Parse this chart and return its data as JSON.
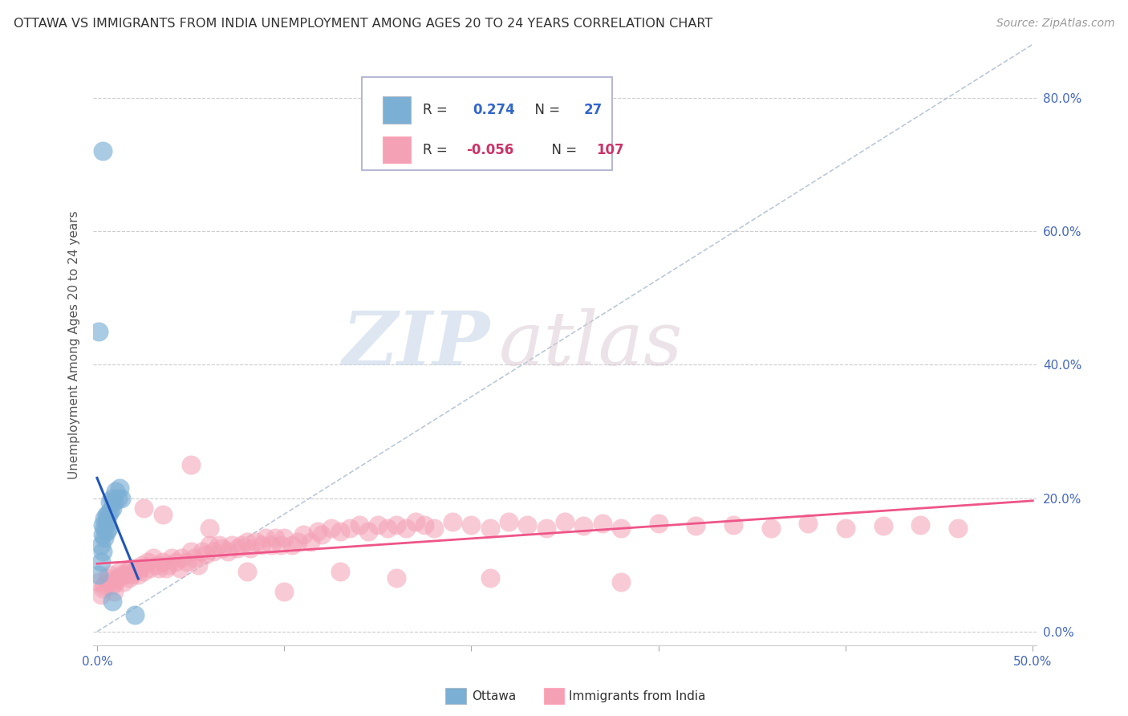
{
  "title": "OTTAWA VS IMMIGRANTS FROM INDIA UNEMPLOYMENT AMONG AGES 20 TO 24 YEARS CORRELATION CHART",
  "source": "Source: ZipAtlas.com",
  "ylabel": "Unemployment Among Ages 20 to 24 years",
  "ytick_labels": [
    "0.0%",
    "20.0%",
    "40.0%",
    "60.0%",
    "80.0%"
  ],
  "ytick_vals": [
    0.0,
    0.2,
    0.4,
    0.6,
    0.8
  ],
  "xlim": [
    -0.002,
    0.502
  ],
  "ylim": [
    -0.02,
    0.88
  ],
  "ottawa_R": 0.274,
  "ottawa_N": 27,
  "india_R": -0.056,
  "india_N": 107,
  "ottawa_color": "#7BAFD4",
  "india_color": "#F4A0B5",
  "ottawa_line_color": "#2255BB",
  "india_line_color": "#EE5588",
  "watermark_zip": "ZIP",
  "watermark_atlas": "atlas",
  "ottawa_x": [
    0.001,
    0.002,
    0.002,
    0.003,
    0.003,
    0.003,
    0.004,
    0.004,
    0.004,
    0.005,
    0.005,
    0.005,
    0.006,
    0.006,
    0.007,
    0.007,
    0.008,
    0.008,
    0.009,
    0.01,
    0.011,
    0.012,
    0.013,
    0.02,
    0.003,
    0.001,
    0.008
  ],
  "ottawa_y": [
    0.085,
    0.105,
    0.13,
    0.12,
    0.145,
    0.16,
    0.14,
    0.155,
    0.17,
    0.15,
    0.165,
    0.175,
    0.155,
    0.175,
    0.18,
    0.195,
    0.185,
    0.2,
    0.195,
    0.21,
    0.2,
    0.215,
    0.2,
    0.025,
    0.72,
    0.45,
    0.045
  ],
  "india_x": [
    0.001,
    0.002,
    0.003,
    0.004,
    0.005,
    0.006,
    0.007,
    0.008,
    0.009,
    0.01,
    0.011,
    0.012,
    0.013,
    0.014,
    0.015,
    0.016,
    0.017,
    0.018,
    0.019,
    0.02,
    0.021,
    0.022,
    0.023,
    0.024,
    0.025,
    0.027,
    0.028,
    0.03,
    0.032,
    0.033,
    0.035,
    0.037,
    0.038,
    0.04,
    0.042,
    0.044,
    0.045,
    0.048,
    0.05,
    0.052,
    0.054,
    0.056,
    0.058,
    0.06,
    0.062,
    0.065,
    0.067,
    0.07,
    0.072,
    0.075,
    0.077,
    0.08,
    0.082,
    0.085,
    0.088,
    0.09,
    0.093,
    0.095,
    0.098,
    0.1,
    0.104,
    0.107,
    0.11,
    0.114,
    0.118,
    0.12,
    0.125,
    0.13,
    0.135,
    0.14,
    0.145,
    0.15,
    0.155,
    0.16,
    0.165,
    0.17,
    0.175,
    0.18,
    0.19,
    0.2,
    0.21,
    0.22,
    0.23,
    0.24,
    0.25,
    0.26,
    0.27,
    0.28,
    0.3,
    0.32,
    0.34,
    0.36,
    0.38,
    0.4,
    0.42,
    0.44,
    0.46,
    0.025,
    0.035,
    0.05,
    0.06,
    0.08,
    0.1,
    0.13,
    0.16,
    0.21,
    0.28
  ],
  "india_y": [
    0.075,
    0.055,
    0.065,
    0.07,
    0.08,
    0.075,
    0.085,
    0.07,
    0.06,
    0.075,
    0.08,
    0.09,
    0.085,
    0.075,
    0.085,
    0.09,
    0.08,
    0.095,
    0.085,
    0.09,
    0.095,
    0.085,
    0.095,
    0.1,
    0.09,
    0.105,
    0.095,
    0.11,
    0.1,
    0.095,
    0.105,
    0.095,
    0.1,
    0.11,
    0.105,
    0.095,
    0.11,
    0.105,
    0.12,
    0.11,
    0.1,
    0.12,
    0.115,
    0.13,
    0.12,
    0.13,
    0.125,
    0.12,
    0.13,
    0.125,
    0.13,
    0.135,
    0.125,
    0.135,
    0.13,
    0.14,
    0.13,
    0.14,
    0.13,
    0.14,
    0.13,
    0.135,
    0.145,
    0.135,
    0.15,
    0.145,
    0.155,
    0.15,
    0.155,
    0.16,
    0.15,
    0.16,
    0.155,
    0.16,
    0.155,
    0.165,
    0.16,
    0.155,
    0.165,
    0.16,
    0.155,
    0.165,
    0.16,
    0.155,
    0.165,
    0.158,
    0.162,
    0.155,
    0.162,
    0.158,
    0.16,
    0.155,
    0.162,
    0.155,
    0.158,
    0.16,
    0.155,
    0.185,
    0.175,
    0.25,
    0.155,
    0.09,
    0.06,
    0.09,
    0.08,
    0.08,
    0.075
  ]
}
